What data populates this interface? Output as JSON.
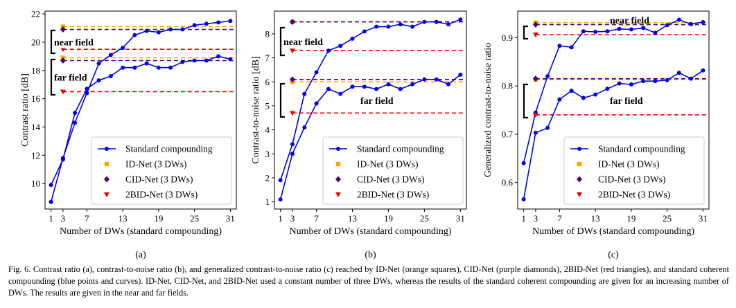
{
  "caption": "Fig. 6.  Contrast ratio (a), contrast-to-noise ratio (b), and generalized contrast-to-noise ratio (c) reached by ID-Net (orange squares), CID-Net (purple diamonds), 2BID-Net (red triangles), and standard coherent compounding (blue points and curves). ID-Net, CID-Net, and 2BID-Net used a constant number of three DWs, whereas the results of the standard coherent compounding are given for an increasing number of DWs. The results are given in the near and far fields.",
  "colors": {
    "standard": "#0000ee",
    "idnet": "#ffa500",
    "cidnet": "#4b0082",
    "bidnet": "#ee0000"
  },
  "legend": [
    {
      "key": "standard",
      "label": "Standard compounding",
      "marker": "line-circle"
    },
    {
      "key": "idnet",
      "label": "ID-Net (3 DWs)",
      "marker": "square"
    },
    {
      "key": "cidnet",
      "label": "CID-Net (3 DWs)",
      "marker": "diamond"
    },
    {
      "key": "bidnet",
      "label": "2BID-Net (3 DWs)",
      "marker": "triangle-down"
    }
  ],
  "chart_data": [
    {
      "type": "line",
      "panel_label": "(a)",
      "xlabel": "Number of DWs (standard compounding)",
      "ylabel": "Contrast ratio [dB]",
      "xticks": [
        1,
        3,
        7,
        13,
        19,
        25,
        31
      ],
      "yticks": [
        10,
        12,
        14,
        16,
        18,
        20,
        22
      ],
      "xlim": [
        0,
        32
      ],
      "ylim": [
        8.2,
        22.2
      ],
      "legend_position": "bottom-right",
      "x": [
        1,
        3,
        5,
        7,
        9,
        11,
        13,
        15,
        17,
        19,
        21,
        23,
        25,
        27,
        29,
        31
      ],
      "fields": [
        {
          "name": "near field",
          "standard": [
            8.7,
            11.8,
            14.3,
            16.4,
            18.5,
            19.1,
            19.6,
            20.5,
            20.8,
            20.7,
            20.9,
            20.9,
            21.2,
            21.3,
            21.4,
            21.5
          ],
          "idnet": 21.1,
          "cidnet": 20.9,
          "bidnet": 19.5
        },
        {
          "name": "far field",
          "standard": [
            9.9,
            11.7,
            15.0,
            16.7,
            17.3,
            17.6,
            18.2,
            18.2,
            18.5,
            18.2,
            18.2,
            18.6,
            18.7,
            18.7,
            19.0,
            18.8
          ],
          "idnet": 18.9,
          "cidnet": 18.7,
          "bidnet": 16.5
        }
      ]
    },
    {
      "type": "line",
      "panel_label": "(b)",
      "xlabel": "Number of DWs (standard compounding)",
      "ylabel": "Contrast-to-noise ratio [dB]",
      "xticks": [
        1,
        3,
        7,
        13,
        19,
        25,
        31
      ],
      "yticks": [
        1,
        2,
        3,
        4,
        5,
        6,
        7,
        8
      ],
      "xlim": [
        0,
        32
      ],
      "ylim": [
        0.7,
        8.95
      ],
      "legend_position": "bottom-right",
      "x": [
        1,
        3,
        5,
        7,
        9,
        11,
        13,
        15,
        17,
        19,
        21,
        23,
        25,
        27,
        29,
        31
      ],
      "fields": [
        {
          "name": "near field",
          "standard": [
            1.9,
            3.4,
            5.5,
            6.4,
            7.3,
            7.5,
            7.8,
            8.1,
            8.3,
            8.3,
            8.4,
            8.3,
            8.5,
            8.5,
            8.4,
            8.6
          ],
          "idnet": 8.5,
          "cidnet": 8.5,
          "bidnet": 7.3
        },
        {
          "name": "far field",
          "standard": [
            1.1,
            3.0,
            4.1,
            5.1,
            5.7,
            5.5,
            5.8,
            5.8,
            5.7,
            5.9,
            5.7,
            5.9,
            6.1,
            6.1,
            5.9,
            6.3
          ],
          "idnet": 6.0,
          "cidnet": 6.1,
          "bidnet": 4.7
        }
      ]
    },
    {
      "type": "line",
      "panel_label": "(c)",
      "xlabel": "Number of DWs (standard compounding)",
      "ylabel": "Generalized contrast-to-noise ratio",
      "xticks": [
        1,
        3,
        7,
        13,
        19,
        25,
        31
      ],
      "yticks": [
        0.6,
        0.7,
        0.8,
        0.9
      ],
      "xlim": [
        0,
        32
      ],
      "ylim": [
        0.545,
        0.955
      ],
      "legend_position": "bottom-right",
      "x": [
        1,
        3,
        5,
        7,
        9,
        11,
        13,
        15,
        17,
        19,
        21,
        23,
        25,
        27,
        29,
        31
      ],
      "fields": [
        {
          "name": "near field",
          "standard": [
            0.64,
            0.745,
            0.82,
            0.883,
            0.88,
            0.913,
            0.912,
            0.913,
            0.918,
            0.917,
            0.92,
            0.91,
            0.926,
            0.937,
            0.928,
            0.932
          ],
          "idnet": 0.931,
          "cidnet": 0.927,
          "bidnet": 0.906
        },
        {
          "name": "far field",
          "standard": [
            0.565,
            0.703,
            0.713,
            0.772,
            0.79,
            0.775,
            0.782,
            0.794,
            0.805,
            0.803,
            0.81,
            0.81,
            0.812,
            0.827,
            0.815,
            0.832
          ],
          "idnet": 0.813,
          "cidnet": 0.815,
          "bidnet": 0.74
        }
      ]
    }
  ]
}
